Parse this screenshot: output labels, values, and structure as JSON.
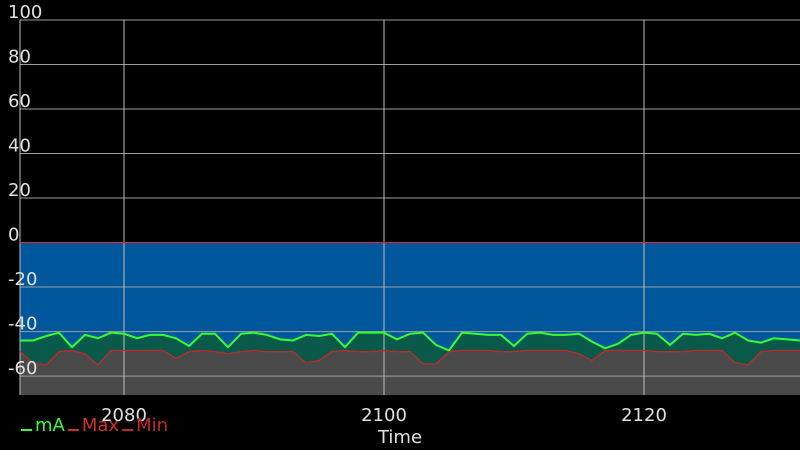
{
  "chart_data": {
    "type": "area",
    "x_label": "Time",
    "x": [
      2072,
      2073,
      2074,
      2075,
      2076,
      2077,
      2078,
      2079,
      2080,
      2081,
      2082,
      2083,
      2084,
      2085,
      2086,
      2087,
      2088,
      2089,
      2090,
      2091,
      2092,
      2093,
      2094,
      2095,
      2096,
      2097,
      2098,
      2099,
      2100,
      2101,
      2102,
      2103,
      2104,
      2105,
      2106,
      2107,
      2108,
      2109,
      2110,
      2111,
      2112,
      2113,
      2114,
      2115,
      2116,
      2117,
      2118,
      2119,
      2120,
      2121,
      2122,
      2123,
      2124,
      2125,
      2126,
      2127,
      2128,
      2129,
      2130,
      2131,
      2132
    ],
    "series": [
      {
        "name": "Max",
        "color": "#d32f2f",
        "fill": "#01579b",
        "values": [
          0,
          0,
          0,
          0,
          0,
          0,
          0,
          0,
          0,
          0,
          0,
          0,
          0,
          0,
          0,
          0,
          0,
          0,
          0,
          0,
          0,
          0,
          0,
          0,
          0,
          0,
          0,
          0,
          0,
          0,
          0,
          0,
          0,
          0,
          0,
          0,
          0,
          0,
          0,
          0,
          0,
          0,
          0,
          0,
          0,
          0,
          0,
          0,
          0,
          0,
          0,
          0,
          0,
          0,
          0,
          0,
          0,
          0,
          0,
          0,
          0
        ]
      },
      {
        "name": "mA",
        "color": "#33ff33",
        "fill": "#0a5a4c",
        "values": [
          -44,
          -44,
          -42,
          -40.5,
          -47,
          -41.5,
          -43,
          -40.5,
          -41,
          -43,
          -41.5,
          -41.5,
          -43,
          -46.5,
          -41,
          -41,
          -47,
          -41,
          -40.5,
          -41.5,
          -43.5,
          -44,
          -41.5,
          -42,
          -41,
          -47,
          -40.5,
          -40.5,
          -40.5,
          -43.5,
          -41,
          -40.5,
          -46,
          -48.5,
          -40.5,
          -41,
          -41.5,
          -41.5,
          -46.5,
          -41,
          -40.5,
          -41.5,
          -41.5,
          -41,
          -44.5,
          -47.5,
          -45.5,
          -41.5,
          -40.5,
          -41,
          -46,
          -41,
          -41.5,
          -41,
          -43,
          -40.5,
          -44,
          -45,
          -43,
          -43.5,
          -44
        ]
      },
      {
        "name": "Min",
        "color": "#c62828",
        "fill": "#4a4a4a",
        "values": [
          -49,
          -54,
          -55,
          -49,
          -48.5,
          -50,
          -55,
          -48.5,
          -48.5,
          -48.5,
          -48.5,
          -48.5,
          -52,
          -49,
          -48.5,
          -49,
          -50,
          -49,
          -48.5,
          -49,
          -49,
          -49,
          -54,
          -53,
          -49,
          -48.5,
          -49,
          -49,
          -48.5,
          -49,
          -49,
          -54.5,
          -54.5,
          -49,
          -48.5,
          -48.5,
          -48.5,
          -49,
          -49,
          -48.5,
          -48.5,
          -48.5,
          -48.5,
          -50,
          -53,
          -48.5,
          -48.5,
          -48.5,
          -48.5,
          -49,
          -49,
          -49,
          -48.5,
          -48.5,
          -48.5,
          -54,
          -55,
          -49,
          -48.5,
          -48.5,
          -48.5
        ]
      }
    ],
    "legend_order": [
      1,
      0,
      2
    ],
    "xlim": [
      2072,
      2132
    ],
    "ylim": [
      -68.5,
      100
    ],
    "xticks": [
      2080,
      2100,
      2120
    ],
    "yticks": [
      -60,
      -40,
      -20,
      0,
      20,
      40,
      60,
      80,
      100
    ],
    "grid": true
  }
}
